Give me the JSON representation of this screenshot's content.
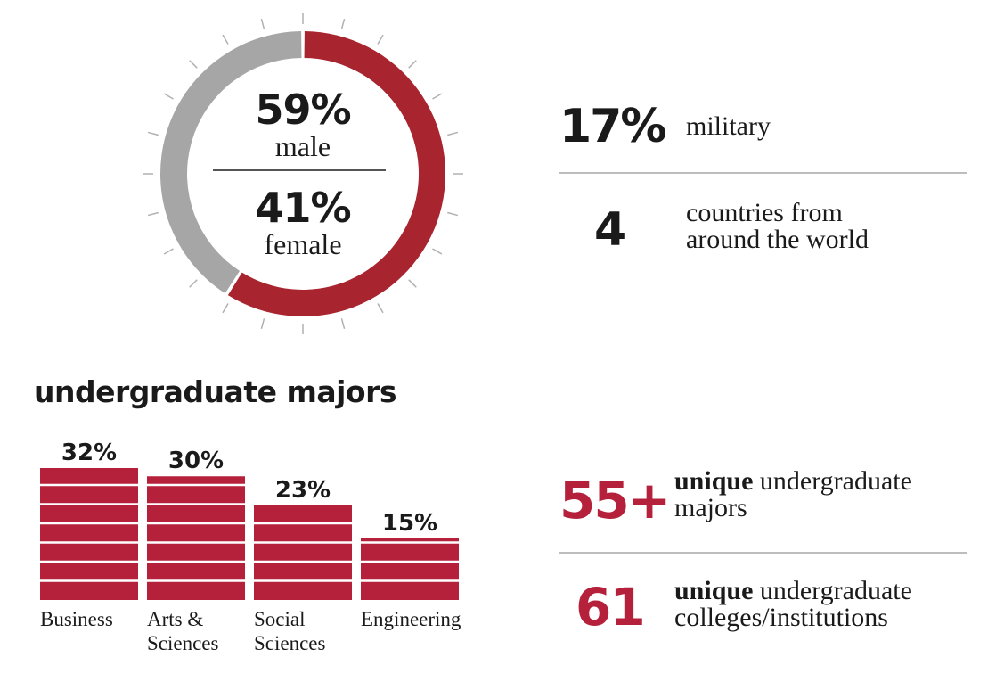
{
  "colors": {
    "accent": "#b5203a",
    "donut_red": "#a8242e",
    "donut_gray": "#a6a6a6",
    "tick": "#b0b0b0"
  },
  "chart_data": [
    {
      "type": "pie",
      "variant": "donut",
      "categories": [
        "male",
        "female"
      ],
      "values": [
        59,
        41
      ],
      "labels": [
        {
          "value": "59%",
          "text": "male"
        },
        {
          "value": "41%",
          "text": "female"
        }
      ]
    },
    {
      "type": "bar",
      "title": "undergraduate majors",
      "categories": [
        "Business",
        "Arts &\nSciences",
        "Social\nSciences",
        "Engineering"
      ],
      "values": [
        32,
        30,
        23,
        15
      ],
      "value_labels": [
        "32%",
        "30%",
        "23%",
        "15%"
      ]
    }
  ],
  "stats": {
    "military": {
      "value": "17%",
      "text": "military"
    },
    "countries": {
      "value": "4",
      "text": "countries from\naround the world"
    },
    "majors": {
      "value": "55+",
      "bold": "unique",
      "text": " undergraduate\nmajors"
    },
    "colleges": {
      "value": "61",
      "bold": "unique",
      "text": " undergraduate\ncolleges/institutions"
    }
  }
}
